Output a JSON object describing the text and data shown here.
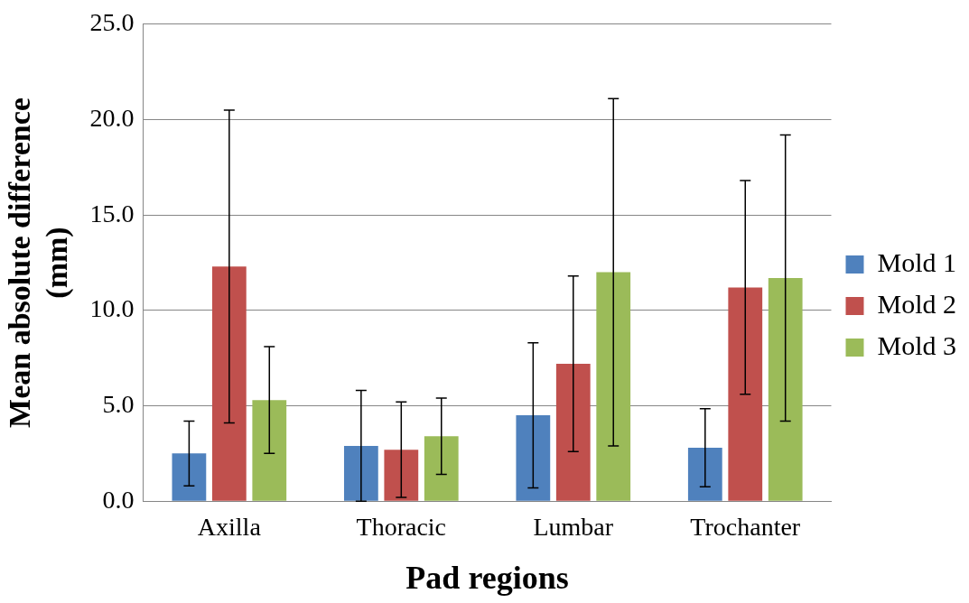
{
  "chart_data": {
    "type": "bar",
    "xlabel": "Pad regions",
    "ylabel": "Mean absolute difference (mm)",
    "categories": [
      "Axilla",
      "Thoracic",
      "Lumbar",
      "Trochanter"
    ],
    "series": [
      {
        "name": "Mold 1",
        "color": "#4f81bd",
        "values": [
          2.5,
          2.9,
          4.5,
          2.8
        ],
        "errors": [
          1.7,
          2.9,
          3.8,
          2.05
        ]
      },
      {
        "name": "Mold 2",
        "color": "#c0504d",
        "values": [
          12.3,
          2.7,
          7.2,
          11.2
        ],
        "errors": [
          8.2,
          2.5,
          4.6,
          5.6
        ]
      },
      {
        "name": "Mold 3",
        "color": "#9bbb59",
        "values": [
          5.3,
          3.4,
          12.0,
          11.7
        ],
        "errors": [
          2.8,
          2.0,
          9.1,
          7.5
        ]
      }
    ],
    "ylim": [
      0,
      25
    ],
    "yticks": [
      {
        "value": 0,
        "label": "0.0"
      },
      {
        "value": 5,
        "label": "5.0"
      },
      {
        "value": 10,
        "label": "10.0"
      },
      {
        "value": 15,
        "label": "15.0"
      },
      {
        "value": 20,
        "label": "20.0"
      },
      {
        "value": 25,
        "label": "25.0"
      }
    ],
    "grid": "y",
    "legend": "right"
  }
}
